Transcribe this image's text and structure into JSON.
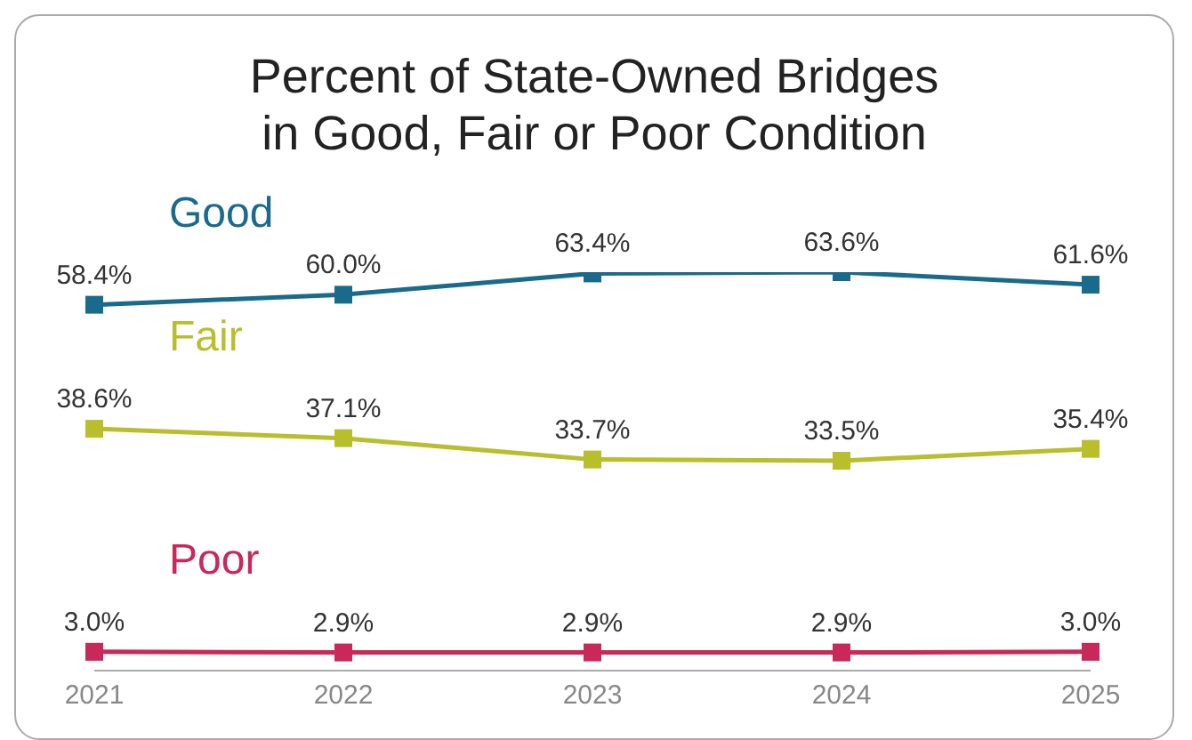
{
  "chart_data": {
    "type": "line",
    "title": "Percent of State-Owned Bridges\nin Good, Fair or Poor Condition",
    "categories": [
      "2021",
      "2022",
      "2023",
      "2024",
      "2025"
    ],
    "tick_labels": "x",
    "marker": "square",
    "line_style": "solid",
    "series": [
      {
        "name": "Good",
        "color": "#1a6a8c",
        "values": [
          58.4,
          60.0,
          63.4,
          63.6,
          61.6
        ],
        "value_labels": [
          "58.4%",
          "60.0%",
          "63.4%",
          "63.6%",
          "61.6%"
        ]
      },
      {
        "name": "Fair",
        "color": "#b8be2c",
        "values": [
          38.6,
          37.1,
          33.7,
          33.5,
          35.4
        ],
        "value_labels": [
          "38.6%",
          "37.1%",
          "33.7%",
          "33.5%",
          "35.4%"
        ]
      },
      {
        "name": "Poor",
        "color": "#c8285a",
        "values": [
          3.0,
          2.9,
          2.9,
          2.9,
          3.0
        ],
        "value_labels": [
          "3.0%",
          "2.9%",
          "2.9%",
          "2.9%",
          "3.0%"
        ]
      }
    ]
  }
}
